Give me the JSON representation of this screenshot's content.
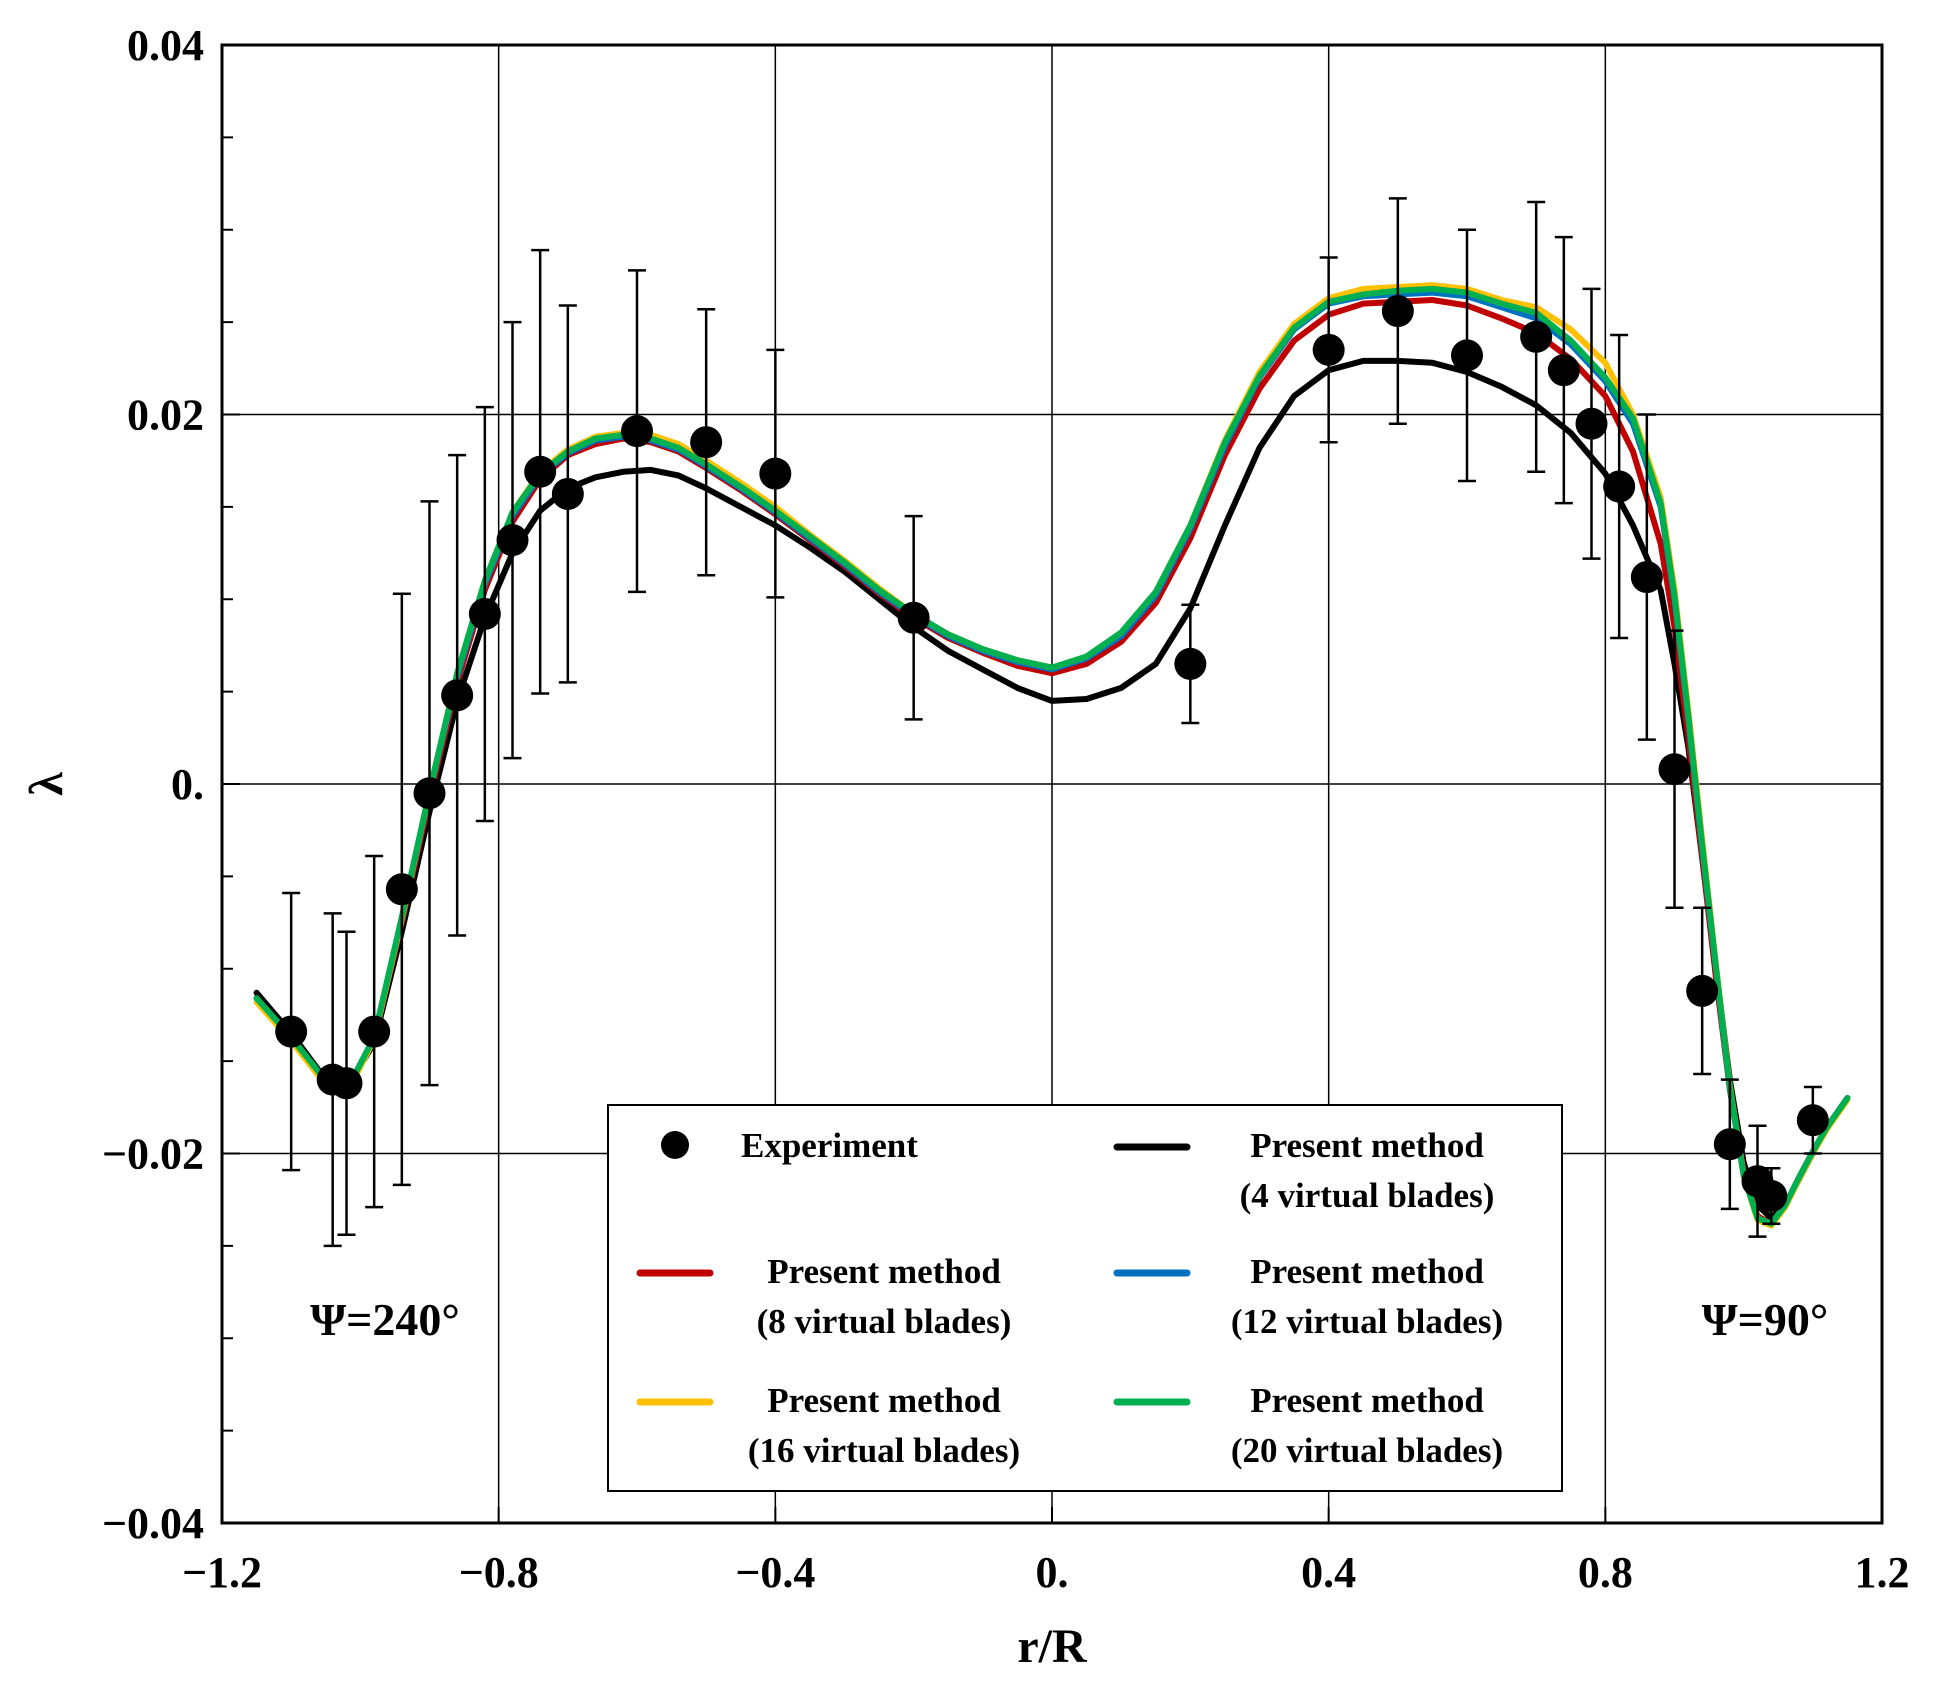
{
  "chart_data": {
    "type": "line",
    "title": "",
    "xlabel": "r/R",
    "ylabel": "λ",
    "xlim": [
      -1.2,
      1.2
    ],
    "ylim": [
      -0.04,
      0.04
    ],
    "grid": true,
    "x_ticks": [
      -1.2,
      -0.8,
      -0.4,
      0.0,
      0.4,
      0.8,
      1.2
    ],
    "x_tick_labels": [
      "−1.2",
      "−0.8",
      "−0.4",
      "0.",
      "0.4",
      "0.8",
      "1.2"
    ],
    "y_ticks": [
      -0.04,
      -0.02,
      0.0,
      0.02,
      0.04
    ],
    "y_tick_labels": [
      "−0.04",
      "−0.02",
      "0.",
      "0.02",
      "0.04"
    ],
    "legend_position": "bottom-center",
    "annotations": [
      {
        "text": "Ψ=240°",
        "x": -1.0,
        "y": -0.0295
      },
      {
        "text": "Ψ=90°",
        "x": 1.0,
        "y": -0.0295
      }
    ],
    "experiment": {
      "name": "Experiment",
      "x": [
        -1.1,
        -1.04,
        -1.02,
        -0.98,
        -0.94,
        -0.9,
        -0.86,
        -0.82,
        -0.78,
        -0.74,
        -0.7,
        -0.6,
        -0.5,
        -0.4,
        -0.2,
        0.2,
        0.4,
        0.5,
        0.6,
        0.7,
        0.74,
        0.78,
        0.82,
        0.86,
        0.9,
        0.94,
        0.98,
        1.02,
        1.04,
        1.1
      ],
      "y": [
        -0.0134,
        -0.016,
        -0.0162,
        -0.0134,
        -0.0057,
        -0.0005,
        0.0048,
        0.0092,
        0.0132,
        0.0169,
        0.0157,
        0.0191,
        0.0185,
        0.0168,
        0.009,
        0.0065,
        0.0235,
        0.0256,
        0.0232,
        0.0242,
        0.0224,
        0.0195,
        0.0161,
        0.0112,
        0.0008,
        -0.0112,
        -0.0195,
        -0.0215,
        -0.0223,
        -0.0182
      ],
      "y_error": [
        0.0075,
        0.009,
        0.0082,
        0.0095,
        0.016,
        0.0158,
        0.013,
        0.0112,
        0.0118,
        0.012,
        0.0102,
        0.0087,
        0.0072,
        0.0067,
        0.0055,
        0.0032,
        0.005,
        0.0061,
        0.0068,
        0.0073,
        0.0072,
        0.0073,
        0.0082,
        0.0088,
        0.0075,
        0.0045,
        0.0035,
        0.003,
        0.0015,
        0.0018
      ]
    },
    "series": [
      {
        "name": "Present method (4 virtual blades)",
        "color": "#000000",
        "x": [
          -1.15,
          -1.1,
          -1.06,
          -1.02,
          -0.98,
          -0.94,
          -0.9,
          -0.86,
          -0.82,
          -0.78,
          -0.74,
          -0.7,
          -0.66,
          -0.62,
          -0.58,
          -0.54,
          -0.5,
          -0.45,
          -0.4,
          -0.35,
          -0.3,
          -0.25,
          -0.2,
          -0.15,
          -0.1,
          -0.05,
          0.0,
          0.05,
          0.1,
          0.15,
          0.2,
          0.25,
          0.3,
          0.35,
          0.4,
          0.45,
          0.5,
          0.55,
          0.6,
          0.65,
          0.7,
          0.75,
          0.8,
          0.84,
          0.88,
          0.9,
          0.92,
          0.94,
          0.96,
          0.98,
          1.0,
          1.02,
          1.04,
          1.06,
          1.08,
          1.1,
          1.12,
          1.15
        ],
        "y": [
          -0.0113,
          -0.0135,
          -0.0155,
          -0.0165,
          -0.014,
          -0.008,
          -0.0015,
          0.0045,
          0.009,
          0.0125,
          0.0148,
          0.016,
          0.0166,
          0.0169,
          0.017,
          0.0167,
          0.016,
          0.015,
          0.014,
          0.0128,
          0.0115,
          0.01,
          0.0085,
          0.0072,
          0.0062,
          0.0052,
          0.0045,
          0.0046,
          0.0052,
          0.0065,
          0.0095,
          0.014,
          0.0182,
          0.021,
          0.0224,
          0.0229,
          0.0229,
          0.0228,
          0.0223,
          0.0215,
          0.0205,
          0.019,
          0.0168,
          0.014,
          0.0105,
          0.0065,
          0.002,
          -0.004,
          -0.01,
          -0.016,
          -0.0205,
          -0.0228,
          -0.0235,
          -0.0228,
          -0.0214,
          -0.02,
          -0.0186,
          -0.017
        ]
      },
      {
        "name": "Present method (8 virtual blades)",
        "color": "#c00000",
        "x": [
          -1.15,
          -1.1,
          -1.06,
          -1.02,
          -0.98,
          -0.94,
          -0.9,
          -0.86,
          -0.82,
          -0.78,
          -0.74,
          -0.7,
          -0.66,
          -0.62,
          -0.58,
          -0.54,
          -0.5,
          -0.45,
          -0.4,
          -0.35,
          -0.3,
          -0.25,
          -0.2,
          -0.15,
          -0.1,
          -0.05,
          0.0,
          0.05,
          0.1,
          0.15,
          0.2,
          0.25,
          0.3,
          0.35,
          0.4,
          0.45,
          0.5,
          0.55,
          0.6,
          0.65,
          0.7,
          0.75,
          0.8,
          0.84,
          0.88,
          0.9,
          0.92,
          0.94,
          0.96,
          0.98,
          1.0,
          1.02,
          1.04,
          1.06,
          1.08,
          1.1,
          1.12,
          1.15
        ],
        "y": [
          -0.0116,
          -0.0137,
          -0.0156,
          -0.0166,
          -0.0138,
          -0.0075,
          -0.0008,
          0.0055,
          0.0105,
          0.0142,
          0.0165,
          0.0178,
          0.0184,
          0.0187,
          0.0185,
          0.018,
          0.0171,
          0.0159,
          0.0146,
          0.0132,
          0.0118,
          0.0103,
          0.009,
          0.0079,
          0.0071,
          0.0064,
          0.006,
          0.0065,
          0.0077,
          0.0098,
          0.0133,
          0.0178,
          0.0214,
          0.024,
          0.0254,
          0.026,
          0.0261,
          0.0262,
          0.0259,
          0.0252,
          0.0244,
          0.023,
          0.021,
          0.018,
          0.013,
          0.0085,
          0.0025,
          -0.004,
          -0.0105,
          -0.0165,
          -0.021,
          -0.0234,
          -0.0238,
          -0.0228,
          -0.0213,
          -0.0199,
          -0.0186,
          -0.017
        ]
      },
      {
        "name": "Present method (12 virtual blades)",
        "color": "#0070c0",
        "x": [
          -1.15,
          -1.1,
          -1.06,
          -1.02,
          -0.98,
          -0.94,
          -0.9,
          -0.86,
          -0.82,
          -0.78,
          -0.74,
          -0.7,
          -0.66,
          -0.62,
          -0.58,
          -0.54,
          -0.5,
          -0.45,
          -0.4,
          -0.35,
          -0.3,
          -0.25,
          -0.2,
          -0.15,
          -0.1,
          -0.05,
          0.0,
          0.05,
          0.1,
          0.15,
          0.2,
          0.25,
          0.3,
          0.35,
          0.4,
          0.45,
          0.5,
          0.55,
          0.6,
          0.65,
          0.7,
          0.75,
          0.8,
          0.84,
          0.88,
          0.9,
          0.92,
          0.94,
          0.96,
          0.98,
          1.0,
          1.02,
          1.04,
          1.06,
          1.08,
          1.1,
          1.12,
          1.15
        ],
        "y": [
          -0.0116,
          -0.0137,
          -0.0156,
          -0.0166,
          -0.0137,
          -0.0073,
          -0.0005,
          0.0058,
          0.0108,
          0.0145,
          0.0167,
          0.0179,
          0.0186,
          0.0188,
          0.0186,
          0.0181,
          0.0172,
          0.016,
          0.0147,
          0.0133,
          0.0119,
          0.0104,
          0.0091,
          0.008,
          0.0072,
          0.0066,
          0.0062,
          0.0068,
          0.008,
          0.0102,
          0.0138,
          0.0183,
          0.022,
          0.0246,
          0.026,
          0.0264,
          0.0265,
          0.0266,
          0.0264,
          0.0258,
          0.0252,
          0.0238,
          0.0218,
          0.0195,
          0.015,
          0.01,
          0.0035,
          -0.0035,
          -0.01,
          -0.0165,
          -0.0212,
          -0.0235,
          -0.0238,
          -0.0228,
          -0.0213,
          -0.0199,
          -0.0186,
          -0.017
        ]
      },
      {
        "name": "Present method (16 virtual blades)",
        "color": "#ffc000",
        "x": [
          -1.15,
          -1.1,
          -1.06,
          -1.02,
          -0.98,
          -0.94,
          -0.9,
          -0.86,
          -0.82,
          -0.78,
          -0.74,
          -0.7,
          -0.66,
          -0.62,
          -0.58,
          -0.54,
          -0.5,
          -0.45,
          -0.4,
          -0.35,
          -0.3,
          -0.25,
          -0.2,
          -0.15,
          -0.1,
          -0.05,
          0.0,
          0.05,
          0.1,
          0.15,
          0.2,
          0.25,
          0.3,
          0.35,
          0.4,
          0.45,
          0.5,
          0.55,
          0.6,
          0.65,
          0.7,
          0.75,
          0.8,
          0.84,
          0.88,
          0.9,
          0.92,
          0.94,
          0.96,
          0.98,
          1.0,
          1.02,
          1.04,
          1.06,
          1.08,
          1.1,
          1.12,
          1.15
        ],
        "y": [
          -0.0118,
          -0.0139,
          -0.0158,
          -0.0168,
          -0.0138,
          -0.0073,
          -0.0004,
          0.006,
          0.011,
          0.0147,
          0.0169,
          0.0181,
          0.0188,
          0.019,
          0.0189,
          0.0184,
          0.0175,
          0.0163,
          0.015,
          0.0135,
          0.0121,
          0.0106,
          0.0092,
          0.0081,
          0.0073,
          0.0067,
          0.0063,
          0.0069,
          0.0082,
          0.0104,
          0.014,
          0.0186,
          0.0223,
          0.0249,
          0.0263,
          0.0268,
          0.0269,
          0.027,
          0.0268,
          0.0262,
          0.0258,
          0.0246,
          0.0228,
          0.02,
          0.0155,
          0.0105,
          0.004,
          -0.003,
          -0.0098,
          -0.0163,
          -0.0212,
          -0.0236,
          -0.0239,
          -0.0229,
          -0.0214,
          -0.02,
          -0.0187,
          -0.0171
        ]
      },
      {
        "name": "Present method (20 virtual blades)",
        "color": "#00b050",
        "x": [
          -1.15,
          -1.1,
          -1.06,
          -1.02,
          -0.98,
          -0.94,
          -0.9,
          -0.86,
          -0.82,
          -0.78,
          -0.74,
          -0.7,
          -0.66,
          -0.62,
          -0.58,
          -0.54,
          -0.5,
          -0.45,
          -0.4,
          -0.35,
          -0.3,
          -0.25,
          -0.2,
          -0.15,
          -0.1,
          -0.05,
          0.0,
          0.05,
          0.1,
          0.15,
          0.2,
          0.25,
          0.3,
          0.35,
          0.4,
          0.45,
          0.5,
          0.55,
          0.6,
          0.65,
          0.7,
          0.75,
          0.8,
          0.84,
          0.88,
          0.9,
          0.92,
          0.94,
          0.96,
          0.98,
          1.0,
          1.02,
          1.04,
          1.06,
          1.08,
          1.1,
          1.12,
          1.15
        ],
        "y": [
          -0.0116,
          -0.0137,
          -0.0156,
          -0.0166,
          -0.0137,
          -0.0072,
          -0.0004,
          0.006,
          0.011,
          0.0147,
          0.0168,
          0.018,
          0.0187,
          0.0189,
          0.0187,
          0.0182,
          0.0173,
          0.0161,
          0.0148,
          0.0134,
          0.012,
          0.0105,
          0.0092,
          0.0081,
          0.0073,
          0.0067,
          0.0063,
          0.0069,
          0.0082,
          0.0104,
          0.014,
          0.0185,
          0.0221,
          0.0247,
          0.0261,
          0.0265,
          0.0267,
          0.0268,
          0.0266,
          0.026,
          0.0255,
          0.024,
          0.022,
          0.0198,
          0.0152,
          0.0102,
          0.0037,
          -0.0033,
          -0.0099,
          -0.0164,
          -0.0212,
          -0.0235,
          -0.0238,
          -0.0228,
          -0.0213,
          -0.0199,
          -0.0186,
          -0.017
        ]
      }
    ],
    "legend": {
      "experiment_label": "Experiment",
      "entries": [
        {
          "line1": "Present method",
          "line2": "(4 virtual blades)",
          "color": "#000000"
        },
        {
          "line1": "Present method",
          "line2": "(8 virtual blades)",
          "color": "#c00000"
        },
        {
          "line1": "Present method",
          "line2": "(12 virtual blades)",
          "color": "#0070c0"
        },
        {
          "line1": "Present method",
          "line2": "(16 virtual blades)",
          "color": "#ffc000"
        },
        {
          "line1": "Present method",
          "line2": "(20 virtual blades)",
          "color": "#00b050"
        }
      ]
    }
  }
}
